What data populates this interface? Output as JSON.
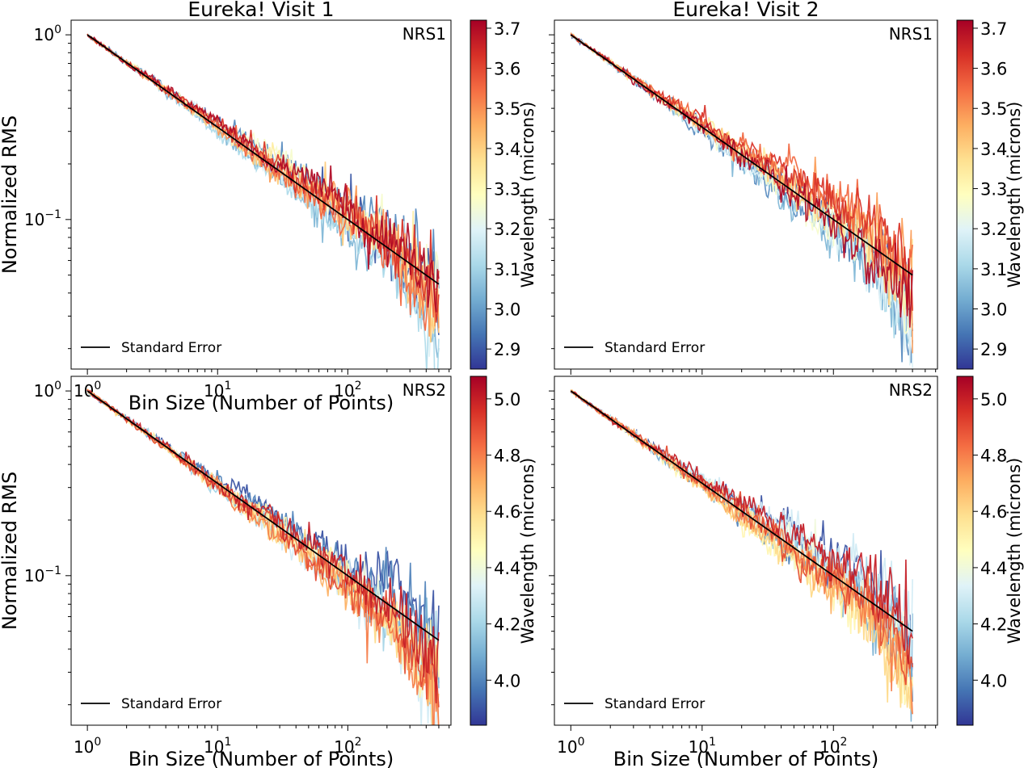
{
  "chart_data": [
    {
      "type": "line",
      "title": "Eureka! Visit 1",
      "detector": "NRS1",
      "xlabel": "Bin Size (Number of Points)",
      "ylabel": "Normalized RMS",
      "xscale": "log",
      "yscale": "log",
      "x_ticks": [
        "10^0",
        "10^1",
        "10^2"
      ],
      "y_ticks": [
        "10^0",
        "10^-1"
      ],
      "xlim": [
        0.75,
        620
      ],
      "ylim": [
        0.0155,
        1.2
      ],
      "standard_error": {
        "label": "Standard Error",
        "x": [
          1,
          500
        ],
        "y": [
          1.0,
          0.0447
        ]
      },
      "series_summary": {
        "n_series": 12,
        "x_max": 500,
        "y_end_range": [
          0.018,
          0.085
        ],
        "wavelength_range": [
          2.9,
          3.7
        ]
      },
      "colorbar": {
        "label": "Wavelength (microns)",
        "min": 2.85,
        "max": 3.72,
        "ticks": [
          "2.9",
          "3.0",
          "3.1",
          "3.2",
          "3.3",
          "3.4",
          "3.5",
          "3.6",
          "3.7"
        ]
      },
      "legend_position": "lower-left"
    },
    {
      "type": "line",
      "title": "Eureka! Visit 2",
      "detector": "NRS1",
      "xlabel": "",
      "ylabel": "",
      "xscale": "log",
      "yscale": "log",
      "x_ticks": [],
      "y_ticks": [],
      "xlim": [
        0.75,
        620
      ],
      "ylim": [
        0.0155,
        1.2
      ],
      "standard_error": {
        "label": "Standard Error",
        "x": [
          1,
          400
        ],
        "y": [
          1.0,
          0.05
        ]
      },
      "series_summary": {
        "n_series": 12,
        "x_max": 400,
        "y_end_range": [
          0.018,
          0.07
        ],
        "wavelength_range": [
          2.9,
          3.7
        ]
      },
      "colorbar": {
        "label": "Wavelength (microns)",
        "min": 2.85,
        "max": 3.72,
        "ticks": [
          "2.9",
          "3.0",
          "3.1",
          "3.2",
          "3.3",
          "3.4",
          "3.5",
          "3.6",
          "3.7"
        ]
      },
      "legend_position": "lower-left"
    },
    {
      "type": "line",
      "title": "",
      "detector": "NRS2",
      "xlabel": "Bin Size (Number of Points)",
      "ylabel": "Normalized RMS",
      "xscale": "log",
      "yscale": "log",
      "x_ticks": [
        "10^0",
        "10^1",
        "10^2"
      ],
      "y_ticks": [
        "10^0",
        "10^-1"
      ],
      "xlim": [
        0.75,
        620
      ],
      "ylim": [
        0.0155,
        1.2
      ],
      "standard_error": {
        "label": "Standard Error",
        "x": [
          1,
          500
        ],
        "y": [
          1.0,
          0.0447
        ]
      },
      "series_summary": {
        "n_series": 12,
        "x_max": 500,
        "y_end_range": [
          0.018,
          0.085
        ],
        "wavelength_range": [
          3.9,
          5.0
        ]
      },
      "colorbar": {
        "label": "Wavelength (microns)",
        "min": 3.84,
        "max": 5.08,
        "ticks": [
          "4.0",
          "4.2",
          "4.4",
          "4.6",
          "4.8",
          "5.0"
        ]
      },
      "legend_position": "lower-left"
    },
    {
      "type": "line",
      "title": "",
      "detector": "NRS2",
      "xlabel": "Bin Size (Number of Points)",
      "ylabel": "",
      "xscale": "log",
      "yscale": "log",
      "x_ticks": [
        "10^0",
        "10^1",
        "10^2"
      ],
      "y_ticks": [],
      "xlim": [
        0.75,
        620
      ],
      "ylim": [
        0.0155,
        1.2
      ],
      "standard_error": {
        "label": "Standard Error",
        "x": [
          1,
          400
        ],
        "y": [
          1.0,
          0.05
        ]
      },
      "series_summary": {
        "n_series": 12,
        "x_max": 400,
        "y_end_range": [
          0.02,
          0.07
        ],
        "wavelength_range": [
          3.9,
          5.0
        ]
      },
      "colorbar": {
        "label": "Wavelength (microns)",
        "min": 3.84,
        "max": 5.08,
        "ticks": [
          "4.0",
          "4.2",
          "4.4",
          "4.6",
          "4.8",
          "5.0"
        ]
      },
      "legend_position": "lower-left"
    }
  ],
  "colormap": [
    "#313695",
    "#4575b4",
    "#74add1",
    "#abd9e9",
    "#e0f3f8",
    "#ffffbf",
    "#fee090",
    "#fdae61",
    "#f46d43",
    "#d73027",
    "#a50026"
  ]
}
